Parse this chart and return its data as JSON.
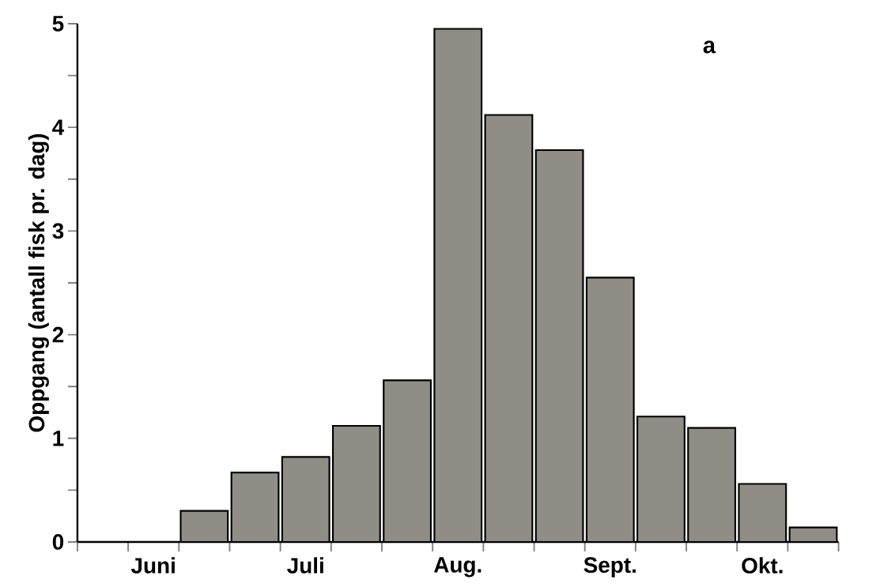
{
  "chart_data": {
    "type": "bar",
    "ylabel": "Oppgang (antall fisk pr. dag)",
    "categories": [
      null,
      "Juni",
      null,
      null,
      "Juli",
      null,
      null,
      "Aug.",
      null,
      null,
      "Sept.",
      null,
      null,
      "Okt.",
      null
    ],
    "values": [
      null,
      null,
      0.3,
      0.67,
      0.82,
      1.12,
      1.56,
      4.95,
      4.12,
      3.78,
      2.55,
      1.21,
      1.1,
      0.56,
      0.14
    ],
    "color": "#8f8d86",
    "ylim": [
      0,
      5
    ],
    "yticks": [
      0,
      {
        "value": 0.5,
        "label": null
      },
      1,
      {
        "value": 1.5,
        "label": null
      },
      2,
      {
        "value": 2.5,
        "label": null
      },
      3,
      {
        "value": 3.5,
        "label": null
      },
      4,
      {
        "value": 4.5,
        "label": null
      },
      5
    ],
    "annotations": [
      "a"
    ]
  }
}
